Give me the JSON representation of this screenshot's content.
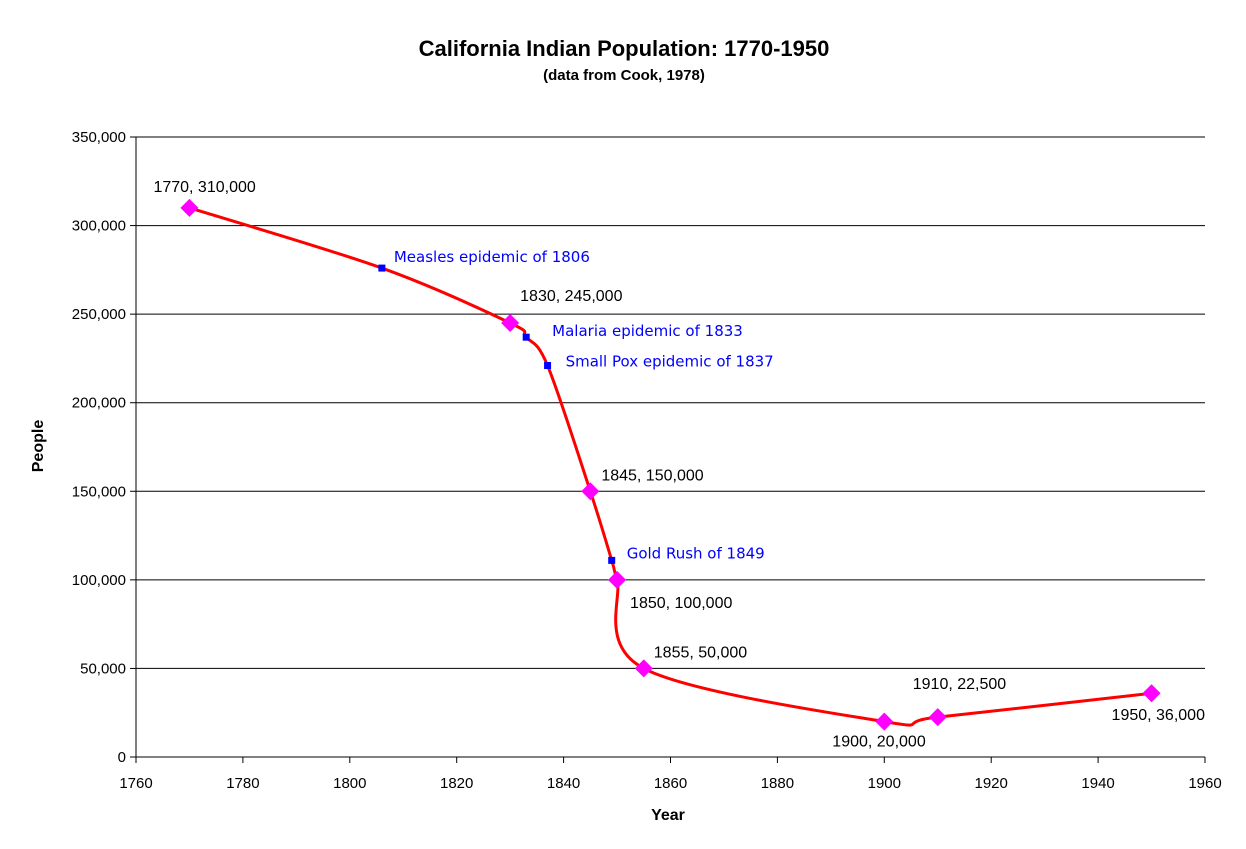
{
  "chart_data": {
    "type": "line",
    "title": "California Indian Population: 1770-1950",
    "subtitle": "(data from Cook, 1978)",
    "xlabel": "Year",
    "ylabel": "People",
    "xlim": [
      1760,
      1960
    ],
    "ylim": [
      0,
      350000
    ],
    "x_ticks": [
      1760,
      1780,
      1800,
      1820,
      1840,
      1860,
      1880,
      1900,
      1920,
      1940,
      1960
    ],
    "y_ticks": [
      0,
      50000,
      100000,
      150000,
      200000,
      250000,
      300000,
      350000
    ],
    "y_tick_labels": [
      "0",
      "50,000",
      "100,000",
      "150,000",
      "200,000",
      "250,000",
      "300,000",
      "350,000"
    ],
    "grid": "horizontal",
    "line_color": "#ff0000",
    "marker_color": "#ff00ff",
    "event_color": "#0000ff",
    "series": [
      {
        "name": "Population",
        "points": [
          {
            "x": 1770,
            "y": 310000,
            "label": "1770, 310,000"
          },
          {
            "x": 1830,
            "y": 245000,
            "label": "1830, 245,000"
          },
          {
            "x": 1845,
            "y": 150000,
            "label": "1845, 150,000"
          },
          {
            "x": 1850,
            "y": 100000,
            "label": "1850, 100,000"
          },
          {
            "x": 1855,
            "y": 50000,
            "label": "1855, 50,000"
          },
          {
            "x": 1900,
            "y": 20000,
            "label": "1900, 20,000"
          },
          {
            "x": 1910,
            "y": 22500,
            "label": "1910, 22,500"
          },
          {
            "x": 1950,
            "y": 36000,
            "label": "1950, 36,000"
          }
        ]
      }
    ],
    "events": [
      {
        "x": 1806,
        "y": 276000,
        "label": "Measles epidemic of 1806"
      },
      {
        "x": 1833,
        "y": 237000,
        "label": "Malaria epidemic of 1833"
      },
      {
        "x": 1837,
        "y": 221000,
        "label": "Small Pox epidemic of 1837"
      },
      {
        "x": 1849,
        "y": 111000,
        "label": "Gold Rush of 1849"
      }
    ]
  }
}
